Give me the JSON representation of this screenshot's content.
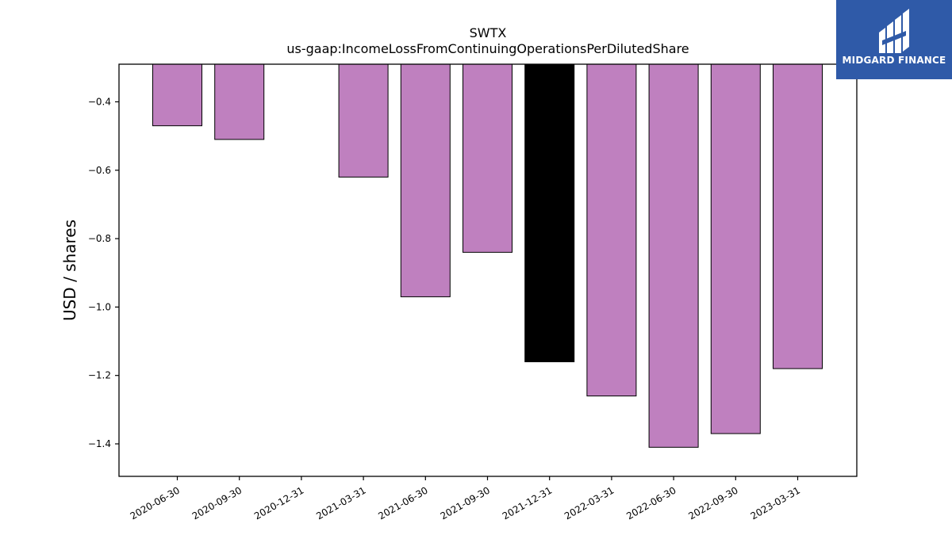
{
  "chart_data": {
    "type": "bar",
    "title": "SWTX",
    "subtitle": "us-gaap:IncomeLossFromContinuingOperationsPerDilutedShare",
    "xlabel": "",
    "ylabel": "USD / shares",
    "categories": [
      "2020-06-30",
      "2020-09-30",
      "2020-12-31",
      "2021-03-31",
      "2021-06-30",
      "2021-09-30",
      "2021-12-31",
      "2022-03-31",
      "2022-06-30",
      "2022-09-30",
      "2023-03-31"
    ],
    "values": [
      -0.47,
      -0.51,
      null,
      -0.62,
      -0.97,
      -0.84,
      -1.16,
      -1.26,
      -1.41,
      -1.37,
      -1.18
    ],
    "highlight_index": 6,
    "colors": {
      "bar": "#bf80bf",
      "highlight": "#000000",
      "edge": "#000000"
    },
    "ylim": [
      -1.495,
      -0.29
    ],
    "yticks": [
      -0.4,
      -0.6,
      -0.8,
      -1.0,
      -1.2,
      -1.4
    ],
    "ytick_labels": [
      "−0.4",
      "−0.6",
      "−0.8",
      "−1.0",
      "−1.2",
      "−1.4"
    ],
    "grid": false,
    "legend": "none"
  },
  "logo": {
    "text": "MIDGARD FINANCE",
    "color": "#2f5aa8"
  }
}
